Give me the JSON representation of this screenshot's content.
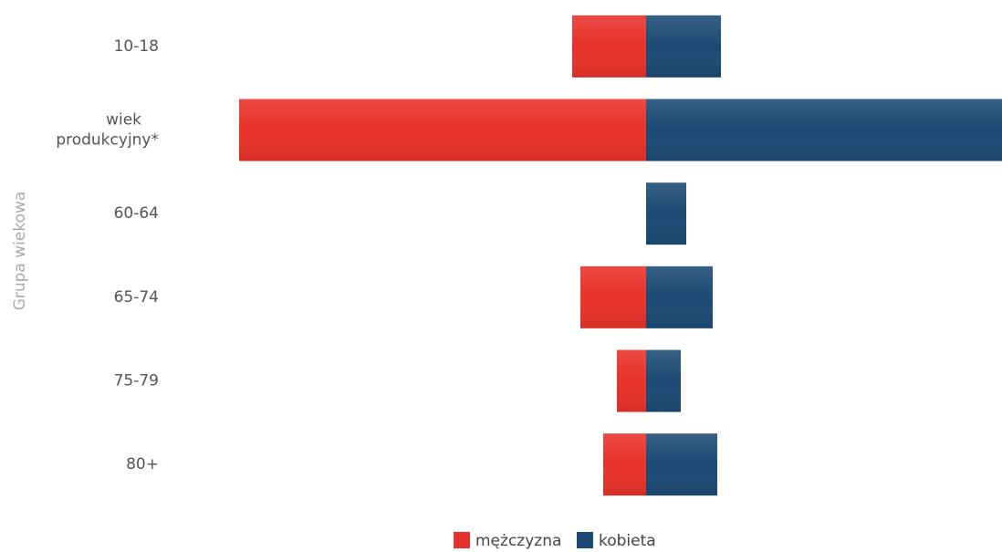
{
  "chart_data": {
    "type": "bar",
    "orientation": "horizontal",
    "barmode": "relative",
    "ylabel": "Grupa wiekowa",
    "categories": [
      "10-18",
      "wiek produkcyjny*",
      "60-64",
      "65-74",
      "75-79",
      "80+"
    ],
    "series": [
      {
        "name": "mężczyzna",
        "color": "#e8312a",
        "values": [
          -81,
          -446,
          0,
          -72,
          -32,
          -47
        ]
      },
      {
        "name": "kobieta",
        "color": "#1c4a74",
        "values": [
          82,
          390,
          44,
          73,
          38,
          78
        ]
      }
    ],
    "xlim": [
      -446,
      390
    ]
  }
}
